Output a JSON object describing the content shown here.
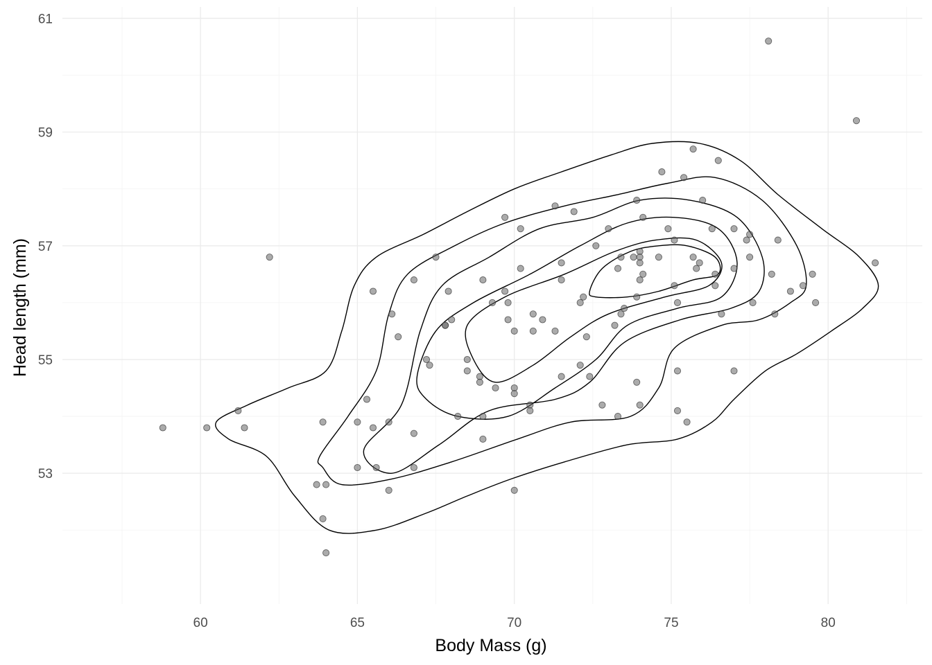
{
  "chart_data": {
    "type": "scatter",
    "xlabel": "Body Mass (g)",
    "ylabel": "Head length (mm)",
    "xlim": [
      55.6,
      83.0
    ],
    "ylim": [
      50.7,
      61.2
    ],
    "x_ticks": [
      60,
      65,
      70,
      75,
      80
    ],
    "y_ticks": [
      53,
      55,
      57,
      59,
      61
    ],
    "grid": true,
    "legend": "none",
    "colors": {
      "points": "#666666",
      "contours": "#000000",
      "grid": "#ebebeb"
    },
    "points": [
      [
        58.8,
        53.8
      ],
      [
        60.2,
        53.8
      ],
      [
        61.2,
        54.1
      ],
      [
        61.4,
        53.8
      ],
      [
        62.2,
        56.8
      ],
      [
        63.7,
        52.8
      ],
      [
        63.9,
        53.9
      ],
      [
        63.9,
        52.2
      ],
      [
        64.0,
        52.8
      ],
      [
        64.0,
        51.6
      ],
      [
        65.0,
        53.9
      ],
      [
        65.0,
        53.1
      ],
      [
        65.3,
        54.3
      ],
      [
        65.5,
        56.2
      ],
      [
        65.5,
        53.8
      ],
      [
        65.6,
        53.1
      ],
      [
        66.0,
        53.9
      ],
      [
        66.0,
        52.7
      ],
      [
        66.1,
        55.8
      ],
      [
        66.3,
        55.4
      ],
      [
        66.8,
        56.4
      ],
      [
        66.8,
        53.7
      ],
      [
        66.8,
        53.1
      ],
      [
        67.2,
        55.0
      ],
      [
        67.3,
        54.9
      ],
      [
        67.5,
        56.8
      ],
      [
        67.8,
        55.6
      ],
      [
        67.8,
        55.6
      ],
      [
        67.9,
        56.2
      ],
      [
        68.0,
        55.7
      ],
      [
        68.2,
        54.0
      ],
      [
        68.5,
        55.0
      ],
      [
        68.5,
        54.8
      ],
      [
        68.9,
        54.7
      ],
      [
        68.9,
        54.6
      ],
      [
        69.0,
        56.4
      ],
      [
        69.0,
        54.0
      ],
      [
        69.0,
        53.6
      ],
      [
        69.3,
        56.0
      ],
      [
        69.4,
        54.5
      ],
      [
        69.7,
        57.5
      ],
      [
        69.7,
        56.2
      ],
      [
        69.8,
        56.0
      ],
      [
        69.8,
        55.7
      ],
      [
        70.0,
        55.5
      ],
      [
        70.0,
        54.5
      ],
      [
        70.0,
        54.4
      ],
      [
        70.0,
        52.7
      ],
      [
        70.2,
        56.6
      ],
      [
        70.2,
        57.3
      ],
      [
        70.5,
        54.2
      ],
      [
        70.5,
        54.1
      ],
      [
        70.6,
        55.8
      ],
      [
        70.6,
        55.5
      ],
      [
        70.9,
        55.7
      ],
      [
        71.3,
        55.5
      ],
      [
        71.3,
        57.7
      ],
      [
        71.5,
        56.7
      ],
      [
        71.5,
        56.4
      ],
      [
        71.5,
        54.7
      ],
      [
        71.9,
        57.6
      ],
      [
        72.1,
        56.0
      ],
      [
        72.1,
        54.9
      ],
      [
        72.2,
        56.1
      ],
      [
        72.3,
        55.4
      ],
      [
        72.4,
        54.7
      ],
      [
        72.6,
        57.0
      ],
      [
        72.8,
        54.2
      ],
      [
        73.0,
        57.3
      ],
      [
        73.2,
        55.6
      ],
      [
        73.3,
        56.6
      ],
      [
        73.3,
        54.0
      ],
      [
        73.4,
        56.8
      ],
      [
        73.4,
        55.8
      ],
      [
        73.5,
        55.9
      ],
      [
        73.8,
        56.8
      ],
      [
        73.9,
        56.1
      ],
      [
        73.9,
        54.6
      ],
      [
        73.9,
        57.8
      ],
      [
        74.0,
        56.9
      ],
      [
        74.0,
        56.8
      ],
      [
        74.0,
        56.7
      ],
      [
        74.0,
        56.4
      ],
      [
        74.0,
        54.2
      ],
      [
        74.1,
        57.5
      ],
      [
        74.1,
        56.5
      ],
      [
        74.6,
        56.8
      ],
      [
        74.7,
        58.3
      ],
      [
        74.9,
        57.3
      ],
      [
        75.1,
        57.1
      ],
      [
        75.1,
        56.3
      ],
      [
        75.2,
        56.0
      ],
      [
        75.2,
        54.8
      ],
      [
        75.2,
        54.1
      ],
      [
        75.4,
        58.2
      ],
      [
        75.5,
        53.9
      ],
      [
        75.7,
        58.7
      ],
      [
        75.7,
        56.8
      ],
      [
        75.8,
        56.6
      ],
      [
        75.9,
        56.7
      ],
      [
        76.0,
        57.8
      ],
      [
        76.3,
        57.3
      ],
      [
        76.4,
        56.3
      ],
      [
        76.4,
        56.5
      ],
      [
        76.5,
        58.5
      ],
      [
        76.6,
        55.8
      ],
      [
        77.0,
        57.3
      ],
      [
        77.0,
        56.6
      ],
      [
        77.0,
        54.8
      ],
      [
        77.4,
        57.1
      ],
      [
        77.5,
        56.8
      ],
      [
        77.5,
        57.2
      ],
      [
        77.6,
        56.0
      ],
      [
        78.1,
        60.6
      ],
      [
        78.2,
        56.5
      ],
      [
        78.3,
        55.8
      ],
      [
        78.4,
        57.1
      ],
      [
        78.8,
        56.2
      ],
      [
        79.2,
        56.3
      ],
      [
        79.5,
        56.5
      ],
      [
        79.6,
        56.0
      ],
      [
        80.9,
        59.2
      ],
      [
        81.5,
        56.7
      ]
    ],
    "contours": [
      {
        "level": 1,
        "path": [
          [
            60.5,
            53.9
          ],
          [
            61.5,
            54.2
          ],
          [
            62.8,
            54.5
          ],
          [
            64.0,
            54.8
          ],
          [
            64.5,
            55.5
          ],
          [
            64.9,
            56.3
          ],
          [
            65.6,
            56.8
          ],
          [
            67.1,
            57.2
          ],
          [
            68.5,
            57.6
          ],
          [
            70.0,
            58.0
          ],
          [
            71.5,
            58.3
          ],
          [
            73.1,
            58.6
          ],
          [
            74.4,
            58.8
          ],
          [
            75.9,
            58.8
          ],
          [
            77.2,
            58.5
          ],
          [
            78.4,
            57.9
          ],
          [
            79.8,
            57.3
          ],
          [
            81.0,
            56.8
          ],
          [
            81.6,
            56.3
          ],
          [
            81.1,
            55.9
          ],
          [
            80.1,
            55.5
          ],
          [
            79.0,
            55.1
          ],
          [
            78.0,
            54.8
          ],
          [
            77.0,
            54.3
          ],
          [
            76.3,
            53.9
          ],
          [
            75.2,
            53.6
          ],
          [
            73.6,
            53.5
          ],
          [
            71.6,
            53.2
          ],
          [
            69.9,
            52.9
          ],
          [
            68.5,
            52.6
          ],
          [
            67.2,
            52.3
          ],
          [
            65.6,
            52.0
          ],
          [
            64.1,
            52.0
          ],
          [
            63.0,
            52.6
          ],
          [
            62.1,
            53.3
          ],
          [
            60.9,
            53.6
          ],
          [
            60.5,
            53.9
          ]
        ]
      },
      {
        "level": 2,
        "path": [
          [
            63.8,
            53.3
          ],
          [
            64.7,
            54.0
          ],
          [
            65.6,
            54.8
          ],
          [
            66.0,
            55.8
          ],
          [
            66.6,
            56.5
          ],
          [
            68.1,
            57.0
          ],
          [
            69.7,
            57.4
          ],
          [
            71.6,
            57.7
          ],
          [
            73.3,
            57.9
          ],
          [
            74.9,
            58.1
          ],
          [
            76.4,
            58.2
          ],
          [
            77.9,
            57.8
          ],
          [
            79.0,
            57.0
          ],
          [
            79.3,
            56.3
          ],
          [
            78.8,
            56.0
          ],
          [
            77.8,
            55.7
          ],
          [
            76.6,
            55.6
          ],
          [
            75.1,
            55.2
          ],
          [
            74.6,
            54.5
          ],
          [
            73.7,
            54.0
          ],
          [
            71.8,
            53.9
          ],
          [
            70.1,
            53.6
          ],
          [
            68.0,
            53.2
          ],
          [
            66.1,
            52.9
          ],
          [
            64.5,
            52.8
          ],
          [
            63.9,
            53.1
          ],
          [
            63.8,
            53.3
          ]
        ]
      },
      {
        "level": 3,
        "path": [
          [
            65.2,
            53.4
          ],
          [
            66.4,
            54.2
          ],
          [
            67.0,
            55.5
          ],
          [
            67.7,
            56.3
          ],
          [
            69.2,
            56.8
          ],
          [
            70.8,
            57.3
          ],
          [
            72.5,
            57.5
          ],
          [
            74.0,
            57.8
          ],
          [
            75.6,
            57.8
          ],
          [
            77.1,
            57.5
          ],
          [
            77.9,
            56.8
          ],
          [
            77.8,
            56.2
          ],
          [
            76.9,
            55.9
          ],
          [
            75.3,
            55.7
          ],
          [
            73.5,
            55.3
          ],
          [
            72.4,
            54.6
          ],
          [
            71.3,
            54.3
          ],
          [
            69.2,
            54.1
          ],
          [
            67.6,
            53.5
          ],
          [
            66.1,
            53.0
          ],
          [
            65.2,
            53.4
          ]
        ]
      },
      {
        "level": 4,
        "path": [
          [
            66.9,
            54.7
          ],
          [
            67.5,
            55.5
          ],
          [
            68.7,
            56.0
          ],
          [
            70.5,
            56.5
          ],
          [
            72.1,
            57.0
          ],
          [
            73.6,
            57.4
          ],
          [
            75.1,
            57.5
          ],
          [
            76.5,
            57.3
          ],
          [
            77.1,
            56.7
          ],
          [
            76.6,
            56.1
          ],
          [
            75.2,
            55.9
          ],
          [
            73.6,
            55.6
          ],
          [
            72.6,
            55.0
          ],
          [
            71.3,
            54.5
          ],
          [
            69.8,
            54.0
          ],
          [
            68.2,
            54.0
          ],
          [
            67.2,
            54.3
          ],
          [
            66.9,
            54.7
          ]
        ]
      },
      {
        "level": 5,
        "path": [
          [
            68.5,
            55.6
          ],
          [
            69.7,
            56.1
          ],
          [
            71.6,
            56.5
          ],
          [
            73.2,
            56.9
          ],
          [
            74.5,
            57.1
          ],
          [
            75.8,
            57.1
          ],
          [
            76.6,
            56.7
          ],
          [
            76.2,
            56.3
          ],
          [
            74.8,
            56.1
          ],
          [
            73.0,
            55.8
          ],
          [
            71.8,
            55.4
          ],
          [
            70.6,
            54.9
          ],
          [
            69.4,
            54.6
          ],
          [
            68.7,
            55.0
          ],
          [
            68.5,
            55.6
          ]
        ]
      },
      {
        "level": 6,
        "path": [
          [
            72.4,
            56.2
          ],
          [
            72.8,
            56.6
          ],
          [
            73.7,
            56.9
          ],
          [
            74.6,
            57.0
          ],
          [
            75.5,
            57.0
          ],
          [
            76.4,
            56.8
          ],
          [
            76.5,
            56.5
          ],
          [
            75.7,
            56.4
          ],
          [
            74.6,
            56.2
          ],
          [
            73.6,
            56.1
          ],
          [
            72.6,
            56.1
          ],
          [
            72.4,
            56.2
          ]
        ]
      }
    ]
  }
}
